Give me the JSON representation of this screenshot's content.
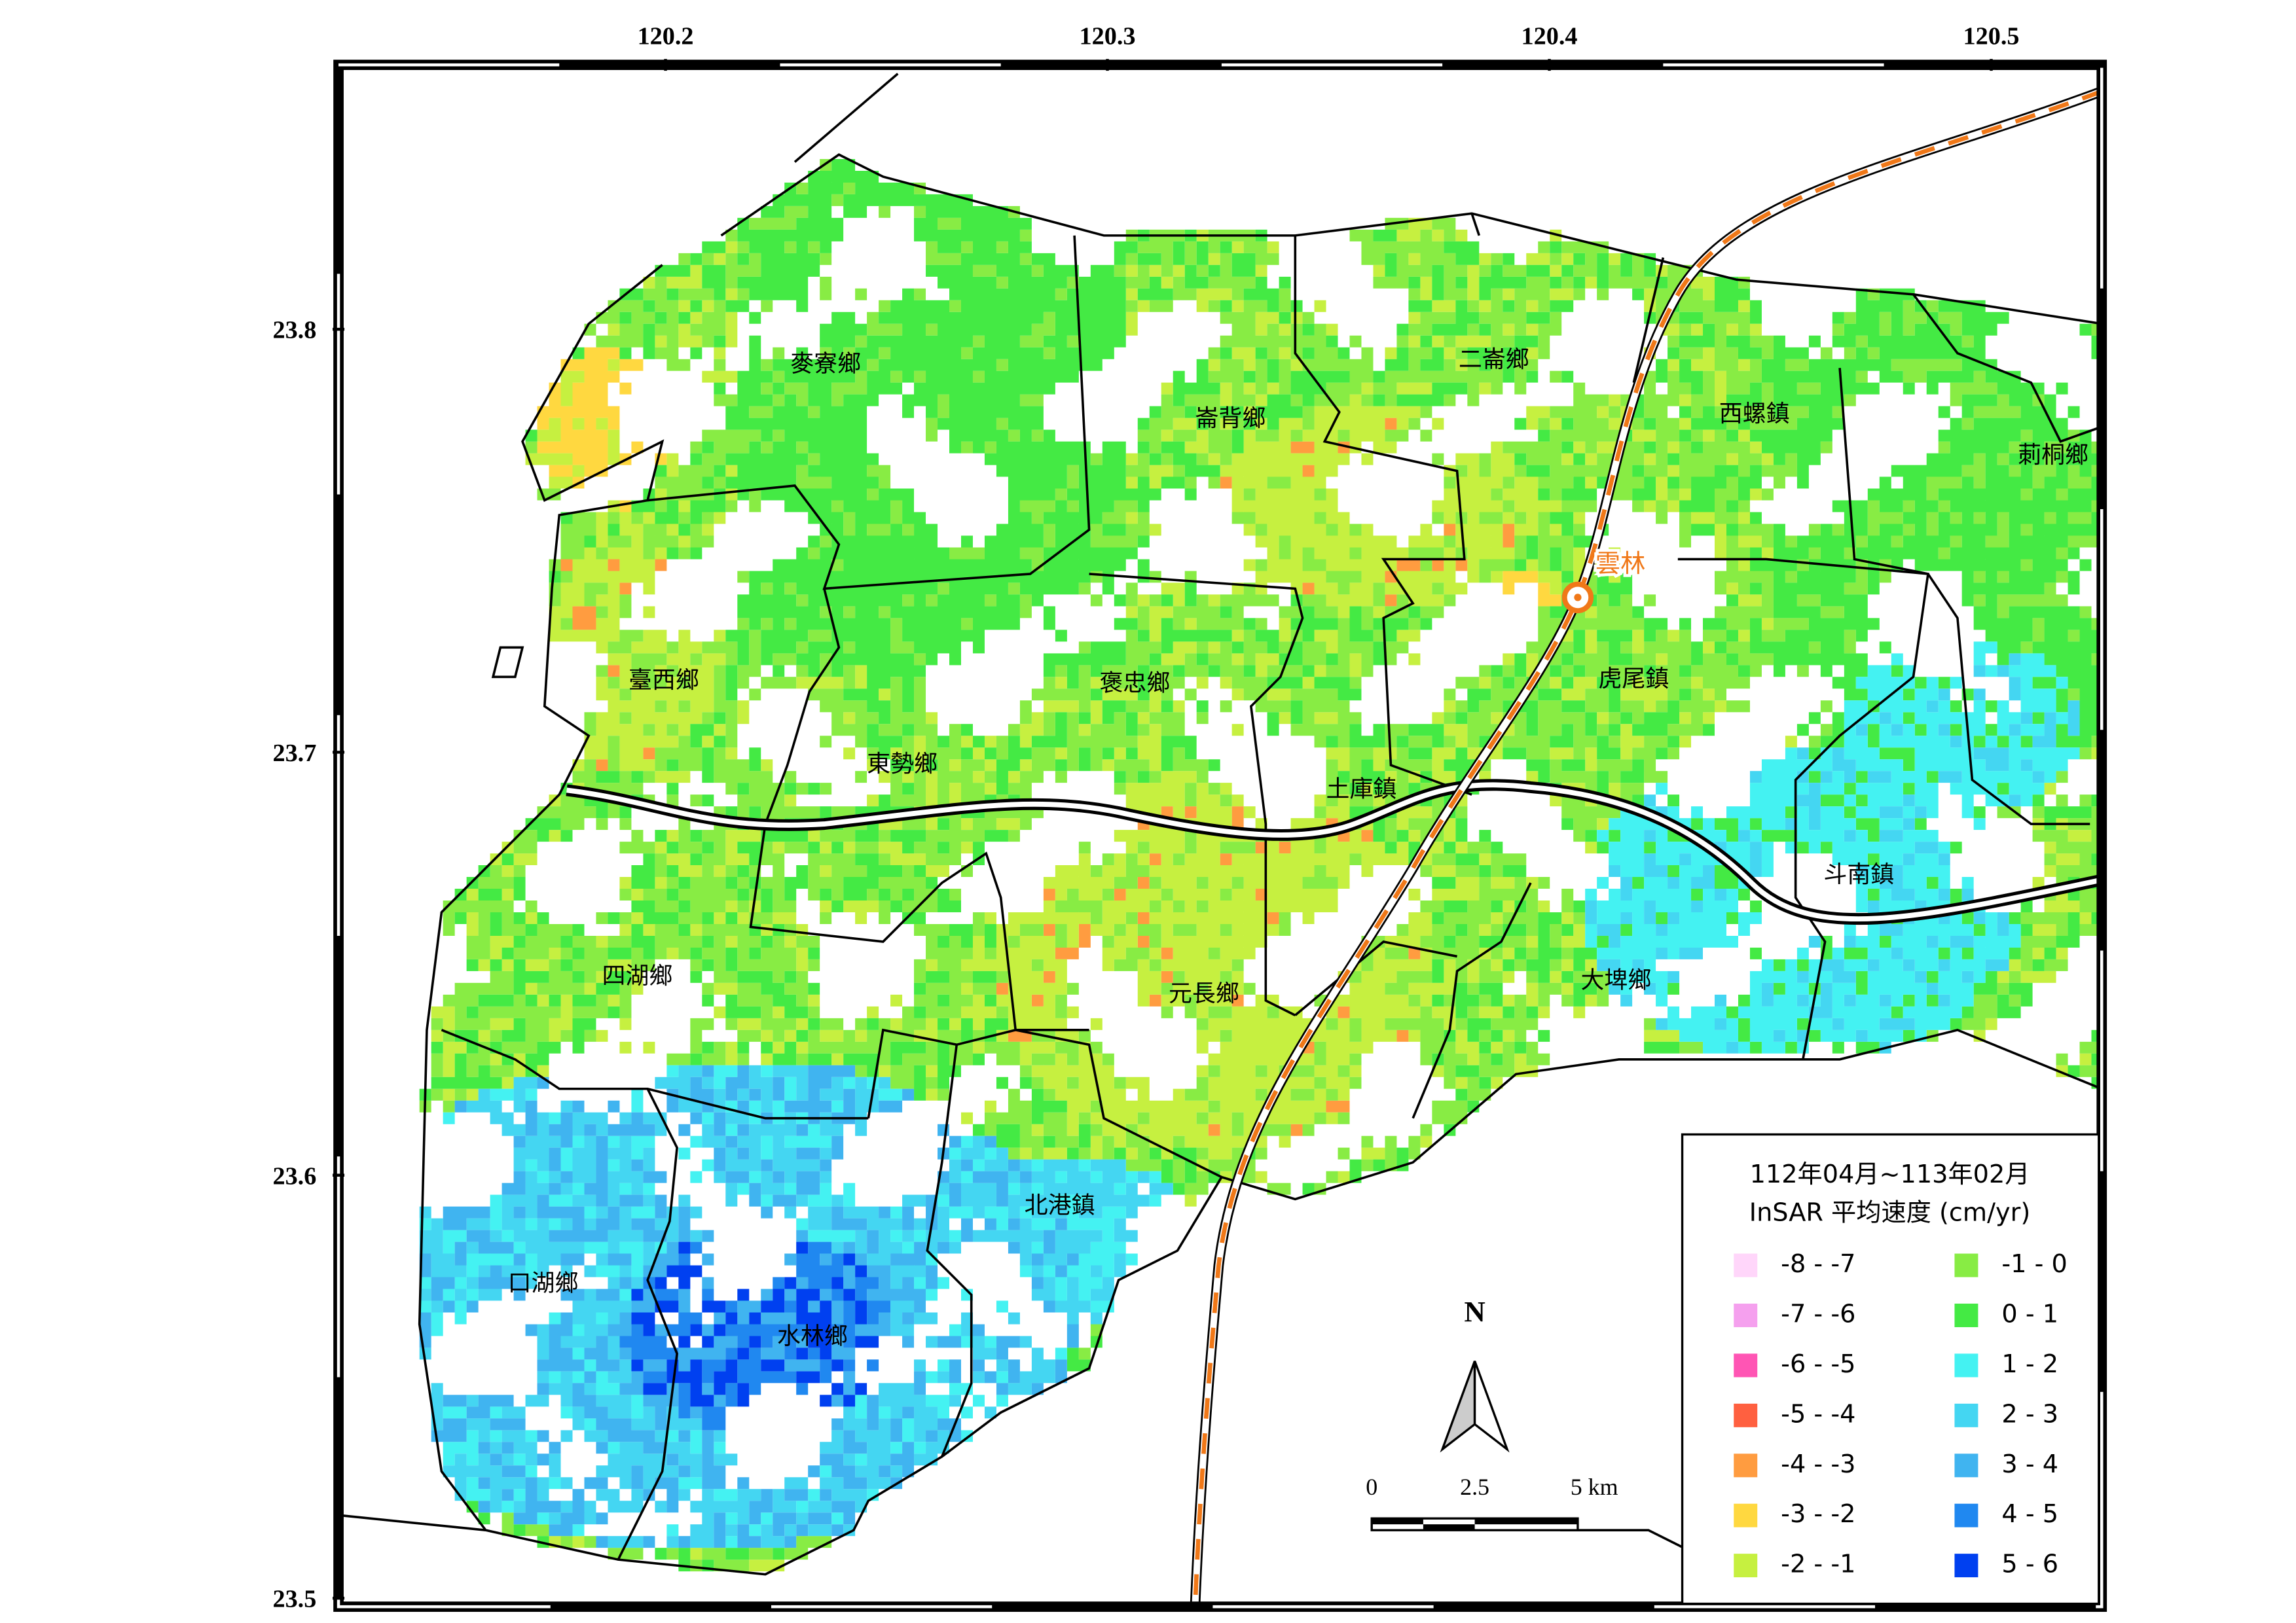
{
  "map": {
    "xticks": [
      120.2,
      120.3,
      120.4,
      120.5
    ],
    "yticks": [
      23.8,
      23.7,
      23.6,
      23.5
    ],
    "xlim": [
      120.126,
      120.525
    ],
    "ylim": [
      23.498,
      23.8625
    ],
    "townships": [
      "麥寮鄉",
      "崙背鄉",
      "二崙鄉",
      "西螺鎮",
      "莿桐鄉",
      "臺西鄉",
      "褒忠鄉",
      "虎尾鎮",
      "東勢鄉",
      "土庫鎮",
      "斗南鎮",
      "四湖鄉",
      "元長鄉",
      "大埤鄉",
      "北港鎮",
      "口湖鄉",
      "水林鄉"
    ],
    "station": "雲林",
    "north": "N",
    "scale_bar": [
      "0",
      "2.5",
      "5 km"
    ]
  },
  "legend": {
    "title": [
      "112年04月~113年02月",
      "InSAR 平均速度 (cm/yr)"
    ],
    "items": [
      {
        "label": "-8 - -7",
        "color": "#ffd6fa"
      },
      {
        "label": "-7 - -6",
        "color": "#f5a0ee"
      },
      {
        "label": "-6 - -5",
        "color": "#ff55b4"
      },
      {
        "label": "-5 - -4",
        "color": "#ff6040"
      },
      {
        "label": "-4 - -3",
        "color": "#ff9c40"
      },
      {
        "label": "-3 - -2",
        "color": "#ffd840"
      },
      {
        "label": "-2 - -1",
        "color": "#c6f040"
      },
      {
        "label": "-1 - 0",
        "color": "#88ec44"
      },
      {
        "label": "0 - 1",
        "color": "#44ea44"
      },
      {
        "label": "1 - 2",
        "color": "#44f2f2"
      },
      {
        "label": "2 - 3",
        "color": "#44d6f2"
      },
      {
        "label": "3 - 4",
        "color": "#40b4f0"
      },
      {
        "label": "4 - 5",
        "color": "#2088f0"
      },
      {
        "label": "5 - 6",
        "color": "#0040f0"
      }
    ]
  }
}
